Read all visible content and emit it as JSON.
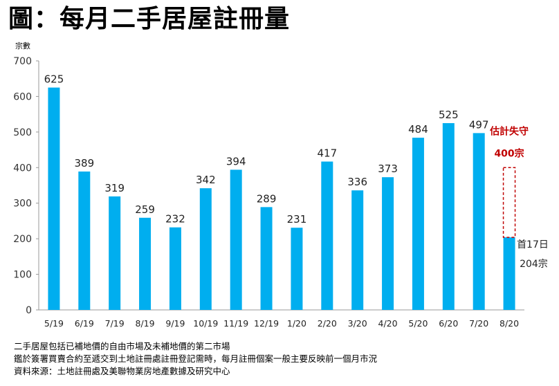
{
  "page_title": "圖：每月二手居屋註冊量",
  "chart_data": {
    "type": "bar",
    "title": "圖：每月二手居屋註冊量",
    "ylabel": "宗數",
    "xlabel": "",
    "ylim": [
      0,
      700
    ],
    "yticks": [
      0,
      100,
      200,
      300,
      400,
      500,
      600,
      700
    ],
    "categories": [
      "5/19",
      "6/19",
      "7/19",
      "8/19",
      "9/19",
      "10/19",
      "11/19",
      "12/19",
      "1/20",
      "2/20",
      "3/20",
      "4/20",
      "5/20",
      "6/20",
      "7/20",
      "8/20"
    ],
    "values": [
      625,
      389,
      319,
      259,
      232,
      342,
      394,
      289,
      231,
      417,
      336,
      373,
      484,
      525,
      497,
      204
    ],
    "bar_color": "#00aeef",
    "estimate": {
      "category": "8/20",
      "value": 400,
      "label_line1": "估計失守",
      "label_line2": "400宗",
      "color": "#c00000"
    },
    "last_bar_label_line1": "首17日",
    "last_bar_label_line2": "204宗"
  },
  "notes": [
    "二手居屋包括已補地價的自由市場及未補地價的第二市場",
    "鑑於簽署買賣合約至遞交到土地註冊處註冊登記需時，每月註冊個案一般主要反映前一個月市況",
    "資料來源：土地註冊處及美聯物業房地產數據及研究中心"
  ]
}
